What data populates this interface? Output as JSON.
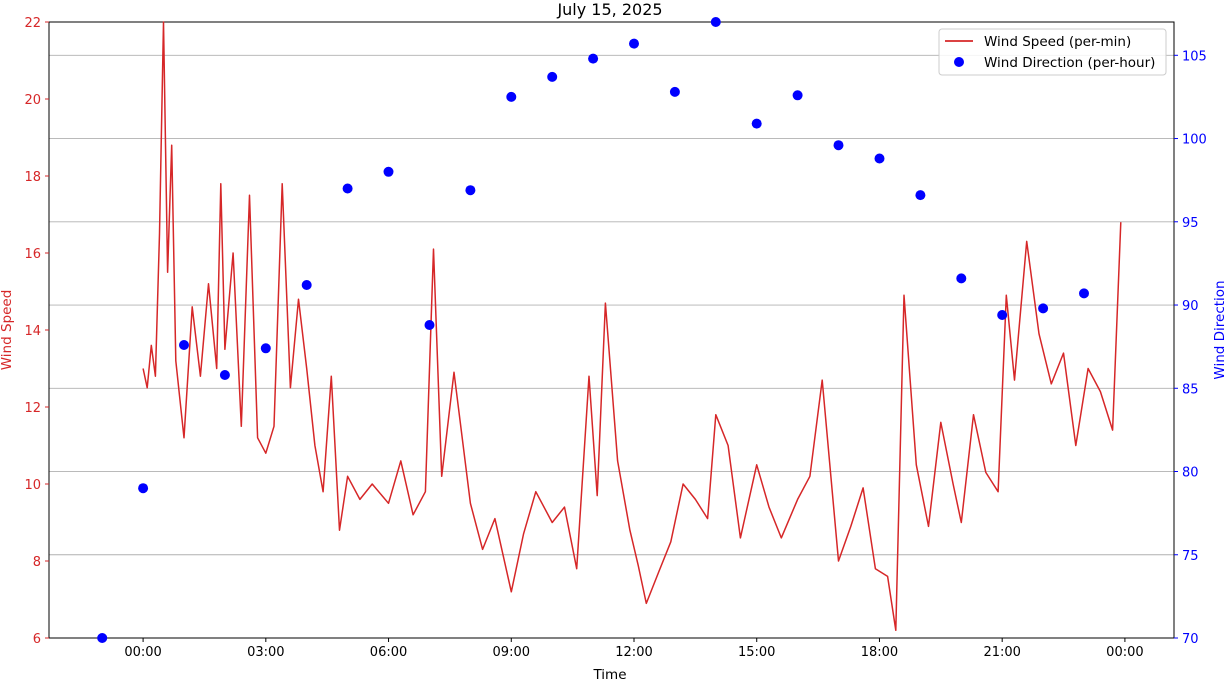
{
  "chart_data": {
    "type": "line",
    "title": "July 15, 2025",
    "xlabel": "Time",
    "ylabel_left": "Wind Speed",
    "ylabel_right": "Wind Direction",
    "x_ticks": [
      "00:00",
      "03:00",
      "06:00",
      "09:00",
      "12:00",
      "15:00",
      "18:00",
      "21:00",
      "00:00"
    ],
    "x_tick_hours": [
      0,
      3,
      6,
      9,
      12,
      15,
      18,
      21,
      24
    ],
    "xlim_hours": [
      -2.3,
      25.2
    ],
    "ylim_left": [
      6,
      22
    ],
    "ylim_right": [
      70,
      107
    ],
    "yticks_left": [
      6,
      8,
      10,
      12,
      14,
      16,
      18,
      20,
      22
    ],
    "yticks_right": [
      70,
      75,
      80,
      85,
      90,
      95,
      100,
      105
    ],
    "grid": "horizontal lines at right-axis ticks",
    "legend_position": "top-right",
    "series": [
      {
        "name": "Wind Speed (per-min)",
        "axis": "left",
        "style": "line",
        "color": "#d62728",
        "x_hours": [
          0.0,
          0.1,
          0.2,
          0.3,
          0.4,
          0.5,
          0.6,
          0.7,
          0.8,
          1.0,
          1.2,
          1.4,
          1.6,
          1.8,
          1.9,
          2.0,
          2.2,
          2.4,
          2.6,
          2.8,
          3.0,
          3.2,
          3.4,
          3.6,
          3.8,
          4.0,
          4.2,
          4.4,
          4.6,
          4.8,
          5.0,
          5.3,
          5.6,
          6.0,
          6.3,
          6.6,
          6.9,
          7.1,
          7.3,
          7.6,
          8.0,
          8.3,
          8.6,
          9.0,
          9.3,
          9.6,
          10.0,
          10.3,
          10.6,
          10.9,
          11.1,
          11.3,
          11.6,
          11.9,
          12.1,
          12.3,
          12.6,
          12.9,
          13.2,
          13.5,
          13.8,
          14.0,
          14.3,
          14.6,
          15.0,
          15.3,
          15.6,
          16.0,
          16.3,
          16.6,
          17.0,
          17.3,
          17.6,
          17.9,
          18.2,
          18.4,
          18.6,
          18.9,
          19.2,
          19.5,
          19.8,
          20.0,
          20.3,
          20.6,
          20.9,
          21.1,
          21.3,
          21.6,
          21.9,
          22.2,
          22.5,
          22.8,
          23.1,
          23.4,
          23.7,
          23.9
        ],
        "values": [
          13.0,
          12.5,
          13.6,
          12.8,
          16.5,
          22.0,
          15.5,
          18.8,
          13.2,
          11.2,
          14.6,
          12.8,
          15.2,
          13.0,
          17.8,
          13.5,
          16.0,
          11.5,
          17.5,
          11.2,
          10.8,
          11.5,
          17.8,
          12.5,
          14.8,
          13.0,
          11.0,
          9.8,
          12.8,
          8.8,
          10.2,
          9.6,
          10.0,
          9.5,
          10.6,
          9.2,
          9.8,
          16.1,
          10.2,
          12.9,
          9.5,
          8.3,
          9.1,
          7.2,
          8.7,
          9.8,
          9.0,
          9.4,
          7.8,
          12.8,
          9.7,
          14.7,
          10.6,
          8.8,
          7.9,
          6.9,
          7.7,
          8.5,
          10.0,
          9.6,
          9.1,
          11.8,
          11.0,
          8.6,
          10.5,
          9.4,
          8.6,
          9.6,
          10.2,
          12.7,
          8.0,
          8.9,
          9.9,
          7.8,
          7.6,
          6.2,
          14.9,
          10.5,
          8.9,
          11.6,
          10.0,
          9.0,
          11.8,
          10.3,
          9.8,
          14.9,
          12.7,
          16.3,
          13.9,
          12.6,
          13.4,
          11.0,
          13.0,
          12.4,
          11.4,
          16.8
        ]
      },
      {
        "name": "Wind Direction (per-hour)",
        "axis": "right",
        "style": "markers",
        "color": "#0000ff",
        "x_hours": [
          -1,
          0,
          1,
          2,
          3,
          4,
          5,
          6,
          7,
          8,
          9,
          10,
          11,
          12,
          13,
          14,
          15,
          16,
          17,
          18,
          19,
          20,
          21,
          22,
          23
        ],
        "values": [
          70.0,
          79.0,
          87.6,
          85.8,
          87.4,
          91.2,
          97.0,
          98.0,
          88.8,
          96.9,
          102.5,
          103.7,
          104.8,
          105.7,
          102.8,
          107.0,
          100.9,
          102.6,
          99.6,
          98.8,
          96.6,
          91.6,
          89.4,
          89.8,
          90.7
        ]
      }
    ]
  }
}
